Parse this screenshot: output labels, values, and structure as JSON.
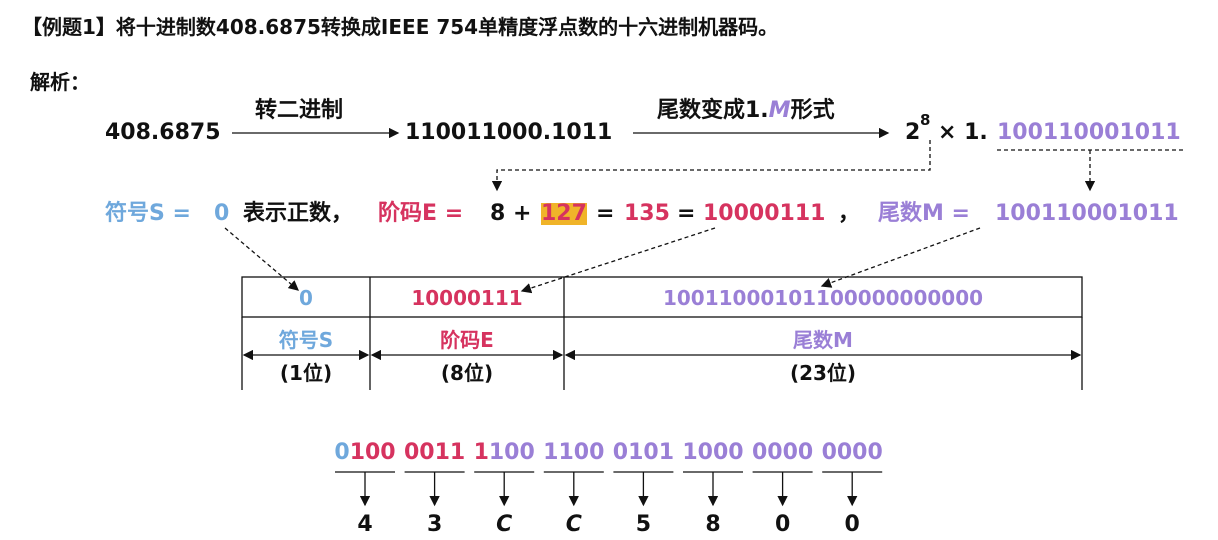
{
  "title": "【例题1】将十进制数408.6875转换成IEEE 754单精度浮点数的十六进制机器码。",
  "analysis_label": "解析：",
  "conversion": {
    "decimal": "408.6875",
    "step1_label": "转二进制",
    "binary": "110011000.1011",
    "step2_label_parts": [
      "尾数变成1.",
      "M",
      "形式"
    ],
    "base": "2",
    "exponent": "8",
    "times": "× 1.",
    "mantissa": "100110001011"
  },
  "result_line": {
    "sign_label": "符号S =",
    "sign_value": "0",
    "sign_note": "表示正数，",
    "exponent_label": "阶码E =",
    "sum_a": "8 +",
    "bias": "127",
    "equals_a": "=",
    "decimal_exp": "135",
    "equals_b": "=",
    "binary_exp": "10000111",
    "comma": "，",
    "mantissa_label": "尾数M =",
    "mantissa": "100110001011"
  },
  "table": {
    "values": [
      "0",
      "10000111",
      "10011000101100000000000"
    ],
    "fields": [
      "符号S",
      "阶码E",
      "尾数M"
    ],
    "bits": [
      "(1位)",
      "(8位)",
      "(23位)"
    ]
  },
  "machine_code": {
    "groups": [
      {
        "parts": [
          "0",
          "100"
        ],
        "colors": [
          "#6fa8dc",
          "#d6335f"
        ]
      },
      {
        "parts": [
          "0011"
        ],
        "colors": [
          "#d6335f"
        ]
      },
      {
        "parts": [
          "1",
          "100"
        ],
        "colors": [
          "#d6335f",
          "#9a7fd6"
        ]
      },
      {
        "parts": [
          "1100"
        ],
        "colors": [
          "#9a7fd6"
        ]
      },
      {
        "parts": [
          "0101"
        ],
        "colors": [
          "#9a7fd6"
        ]
      },
      {
        "parts": [
          "1000"
        ],
        "colors": [
          "#9a7fd6"
        ]
      },
      {
        "parts": [
          "0000"
        ],
        "colors": [
          "#9a7fd6"
        ]
      },
      {
        "parts": [
          "0000"
        ],
        "colors": [
          "#9a7fd6"
        ]
      }
    ],
    "hex": [
      "4",
      "3",
      "C",
      "C",
      "5",
      "8",
      "0",
      "0"
    ]
  }
}
